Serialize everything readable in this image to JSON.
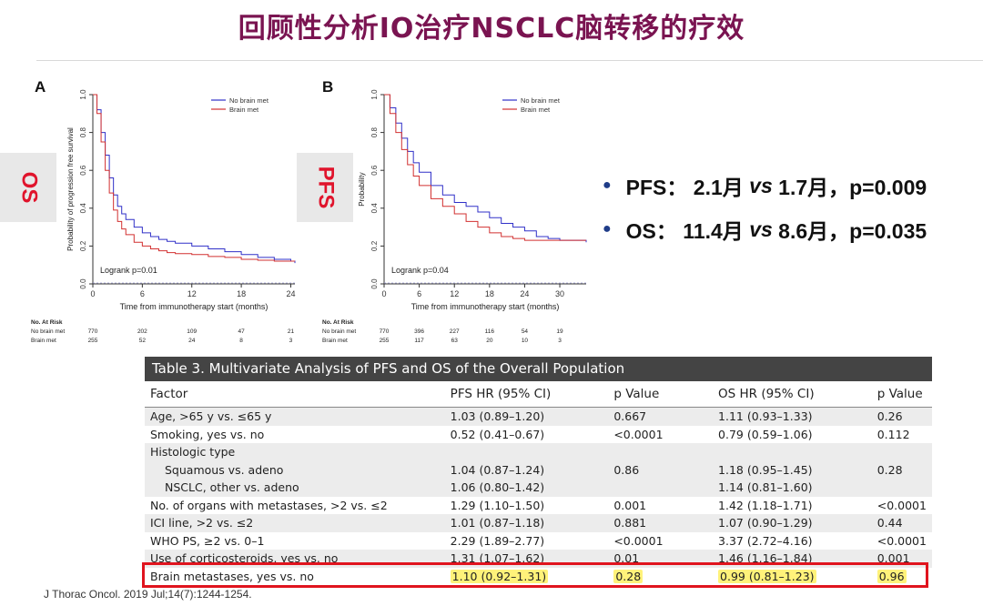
{
  "slide_title": "回顾性分析IO治疗NSCLC脑转移的疗效",
  "side_tags": {
    "left": "OS",
    "right": "PFS"
  },
  "panels": [
    {
      "letter": "A",
      "ylabel": "Probability of progression free survival",
      "xlabel": "Time from immunotherapy start (months)",
      "xticks": [
        "0",
        "6",
        "12",
        "18",
        "24"
      ],
      "yticks": [
        "0.0",
        "0.2",
        "0.4",
        "0.6",
        "0.8",
        "1.0"
      ],
      "legend": [
        "No brain met",
        "Brain met"
      ],
      "logrank": "Logrank p=0.01",
      "risk_title": "No. At Risk",
      "risk_rows": [
        {
          "label": "No brain met",
          "values": [
            "770",
            "202",
            "109",
            "47",
            "21"
          ]
        },
        {
          "label": "Brain met",
          "values": [
            "255",
            "52",
            "24",
            "8",
            "3"
          ]
        }
      ]
    },
    {
      "letter": "B",
      "ylabel": "Probability",
      "xlabel": "Time from immunotherapy start (months)",
      "xticks": [
        "0",
        "6",
        "12",
        "18",
        "24",
        "30"
      ],
      "yticks": [
        "0.0",
        "0.2",
        "0.4",
        "0.6",
        "0.8",
        "1.0"
      ],
      "legend": [
        "No brain met",
        "Brain met"
      ],
      "logrank": "Logrank p=0.04",
      "risk_title": "No. At Risk",
      "risk_rows": [
        {
          "label": "No brain met",
          "values": [
            "770",
            "396",
            "227",
            "116",
            "54",
            "19"
          ]
        },
        {
          "label": "Brain met",
          "values": [
            "255",
            "117",
            "63",
            "20",
            "10",
            "3"
          ]
        }
      ]
    }
  ],
  "chart_data": [
    {
      "type": "line",
      "title": "",
      "xlabel": "Time from immunotherapy start (months)",
      "ylabel": "Probability of progression free survival",
      "xlim": [
        0,
        24.5
      ],
      "ylim": [
        0,
        1
      ],
      "series": [
        {
          "name": "No brain met",
          "color": "#3030c8",
          "x": [
            0,
            0.5,
            1,
            1.5,
            2,
            2.5,
            3,
            3.5,
            4,
            5,
            6,
            7,
            8,
            9,
            10,
            12,
            14,
            16,
            18,
            20,
            22,
            24,
            24.5
          ],
          "y": [
            1,
            0.92,
            0.8,
            0.68,
            0.56,
            0.47,
            0.41,
            0.37,
            0.34,
            0.3,
            0.27,
            0.25,
            0.235,
            0.225,
            0.215,
            0.2,
            0.185,
            0.17,
            0.155,
            0.14,
            0.13,
            0.12,
            0.11
          ]
        },
        {
          "name": "Brain met",
          "color": "#d23030",
          "x": [
            0,
            0.5,
            1,
            1.5,
            2,
            2.5,
            3,
            3.5,
            4,
            5,
            6,
            7,
            8,
            9,
            10,
            12,
            14,
            16,
            18,
            20,
            22,
            24,
            24.5
          ],
          "y": [
            1,
            0.9,
            0.75,
            0.6,
            0.48,
            0.39,
            0.33,
            0.29,
            0.26,
            0.22,
            0.2,
            0.185,
            0.175,
            0.165,
            0.16,
            0.155,
            0.145,
            0.14,
            0.13,
            0.125,
            0.12,
            0.12,
            0.12
          ]
        }
      ]
    },
    {
      "type": "line",
      "title": "",
      "xlabel": "Time from immunotherapy start (months)",
      "ylabel": "Probability",
      "xlim": [
        0,
        34.5
      ],
      "ylim": [
        0,
        1
      ],
      "series": [
        {
          "name": "No brain met",
          "color": "#3030c8",
          "x": [
            0,
            1,
            2,
            3,
            4,
            5,
            6,
            8,
            10,
            12,
            14,
            16,
            18,
            20,
            22,
            24,
            26,
            28,
            30,
            32,
            34.5
          ],
          "y": [
            1,
            0.93,
            0.85,
            0.77,
            0.7,
            0.64,
            0.59,
            0.52,
            0.47,
            0.43,
            0.41,
            0.38,
            0.35,
            0.32,
            0.3,
            0.28,
            0.25,
            0.24,
            0.23,
            0.23,
            0.22
          ]
        },
        {
          "name": "Brain met",
          "color": "#d23030",
          "x": [
            0,
            1,
            2,
            3,
            4,
            5,
            6,
            8,
            10,
            12,
            14,
            16,
            18,
            20,
            22,
            24,
            26,
            28,
            30,
            32,
            34.5
          ],
          "y": [
            1,
            0.9,
            0.8,
            0.71,
            0.63,
            0.57,
            0.52,
            0.45,
            0.41,
            0.37,
            0.33,
            0.3,
            0.27,
            0.25,
            0.24,
            0.23,
            0.23,
            0.23,
            0.23,
            0.23,
            0.23
          ]
        }
      ]
    }
  ],
  "bullets": [
    {
      "label": "PFS：",
      "a": "2.1月",
      "vs": "vs",
      "b": "1.7月，p=0.009"
    },
    {
      "label": "OS：",
      "a": "11.4月",
      "vs": "vs",
      "b": "8.6月，p=0.035"
    }
  ],
  "table": {
    "caption": "Table 3. Multivariate Analysis of PFS and OS of the Overall Population",
    "headers": [
      "Factor",
      "PFS HR (95% CI)",
      "p Value",
      "OS HR (95% CI)",
      "p Value"
    ],
    "rows": [
      {
        "factor": "Age, >65 y vs. ≤65 y",
        "pfs_hr": "1.03 (0.89–1.20)",
        "pfs_p": "0.667",
        "os_hr": "1.11 (0.93–1.33)",
        "os_p": "0.26"
      },
      {
        "factor": "Smoking, yes vs. no",
        "pfs_hr": "0.52 (0.41–0.67)",
        "pfs_p": "<0.0001",
        "os_hr": "0.79 (0.59–1.06)",
        "os_p": "0.112"
      },
      {
        "factor": "Histologic type",
        "pfs_hr": "",
        "pfs_p": "",
        "os_hr": "",
        "os_p": ""
      },
      {
        "factor": "Squamous vs. adeno",
        "pfs_hr": "1.04 (0.87–1.24)",
        "pfs_p": "0.86",
        "os_hr": "1.18 (0.95–1.45)",
        "os_p": "0.28"
      },
      {
        "factor": "NSCLC, other vs. adeno",
        "pfs_hr": "1.06 (0.80–1.42)",
        "pfs_p": "",
        "os_hr": "1.14 (0.81–1.60)",
        "os_p": ""
      },
      {
        "factor": "No. of organs with metastases, >2 vs. ≤2",
        "pfs_hr": "1.29 (1.10–1.50)",
        "pfs_p": "0.001",
        "os_hr": "1.42 (1.18–1.71)",
        "os_p": "<0.0001"
      },
      {
        "factor": "ICI line, >2 vs. ≤2",
        "pfs_hr": "1.01 (0.87–1.18)",
        "pfs_p": "0.881",
        "os_hr": "1.07 (0.90–1.29)",
        "os_p": "0.44"
      },
      {
        "factor": "WHO PS, ≥2 vs. 0–1",
        "pfs_hr": "2.29 (1.89–2.77)",
        "pfs_p": "<0.0001",
        "os_hr": "3.37 (2.72–4.16)",
        "os_p": "<0.0001"
      },
      {
        "factor": "Use of corticosteroids, yes vs. no",
        "pfs_hr": "1.31 (1.07–1.62)",
        "pfs_p": "0.01",
        "os_hr": "1.46 (1.16–1.84)",
        "os_p": "0.001"
      },
      {
        "factor": "Brain metastases, yes vs. no",
        "pfs_hr": "1.10 (0.92–1.31)",
        "pfs_p": "0.28",
        "os_hr": "0.99 (0.81–1.23)",
        "os_p": "0.96"
      }
    ]
  },
  "citation": "J Thorac Oncol. 2019 Jul;14(7):1244-1254."
}
